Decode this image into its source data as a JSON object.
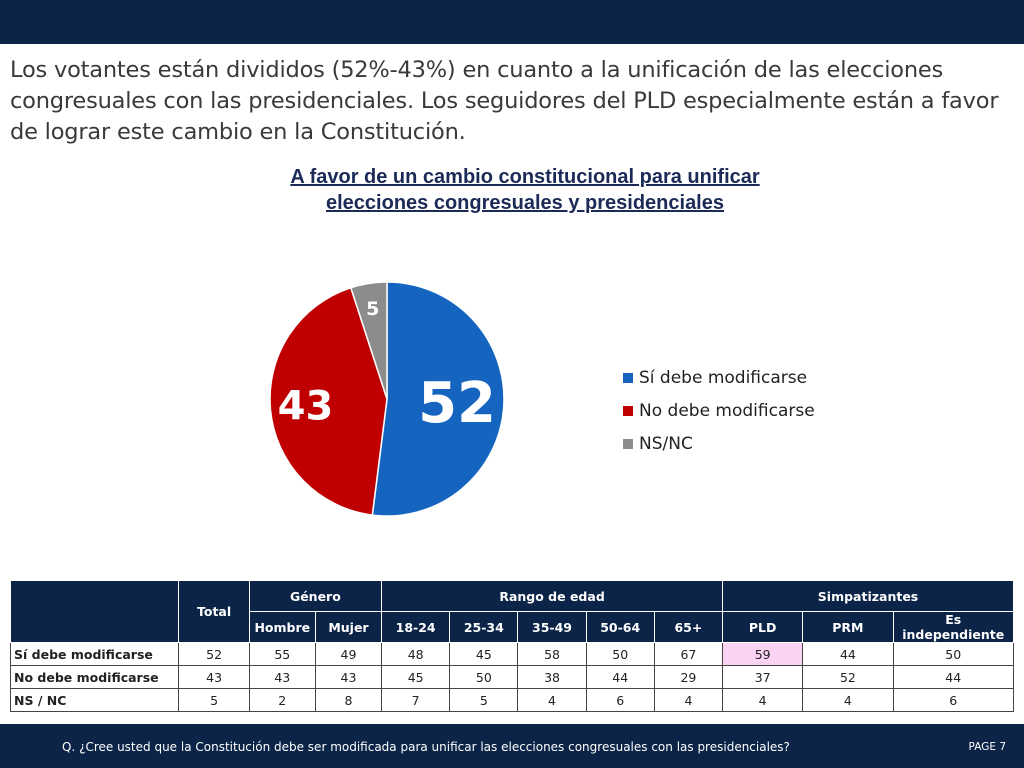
{
  "headline": "Los votantes están divididos (52%-43%) en cuanto a la unificación de las elecciones congresuales con las presidenciales. Los seguidores del PLD especialmente están a favor de lograr este cambio en la Constitución.",
  "chart_data": {
    "type": "pie",
    "title": "A favor de un cambio constitucional para unificar",
    "title_line2": "elecciones congresuales y presidenciales",
    "series": [
      {
        "name": "Sí debe modificarse",
        "value": 52,
        "label": "52",
        "color": "#1565c0"
      },
      {
        "name": "No debe modificarse",
        "value": 43,
        "label": "43",
        "color": "#c00000"
      },
      {
        "name": "NS/NC",
        "value": 5,
        "label": "5",
        "color": "#8c8c8c"
      }
    ],
    "legend_position": "right"
  },
  "table": {
    "total_header": "Total",
    "groups": [
      {
        "label": "Género",
        "subs": [
          "Hombre",
          "Mujer"
        ]
      },
      {
        "label": "Rango de edad",
        "subs": [
          "18-24",
          "25-34",
          "35-49",
          "50-64",
          "65+"
        ]
      },
      {
        "label": "Simpatizantes",
        "subs": [
          "PLD",
          "PRM",
          "Es independiente"
        ]
      }
    ],
    "rows": [
      {
        "label": "Sí debe modificarse",
        "values": [
          "52",
          "55",
          "49",
          "48",
          "45",
          "58",
          "50",
          "67",
          "59",
          "44",
          "50"
        ]
      },
      {
        "label": "No debe modificarse",
        "values": [
          "43",
          "43",
          "43",
          "45",
          "50",
          "38",
          "44",
          "29",
          "37",
          "52",
          "44"
        ]
      },
      {
        "label": "NS / NC",
        "values": [
          "5",
          "2",
          "8",
          "7",
          "5",
          "4",
          "6",
          "4",
          "4",
          "4",
          "6"
        ]
      }
    ],
    "highlight_color": "#fad3f3"
  },
  "footer": {
    "question": "Q. ¿Cree usted que la Constitución debe ser modificada para unificar las elecciones congresuales con las presidenciales?",
    "page": "PAGE 7"
  },
  "colors": {
    "navy": "#0b2447",
    "title": "#1b2a57"
  }
}
